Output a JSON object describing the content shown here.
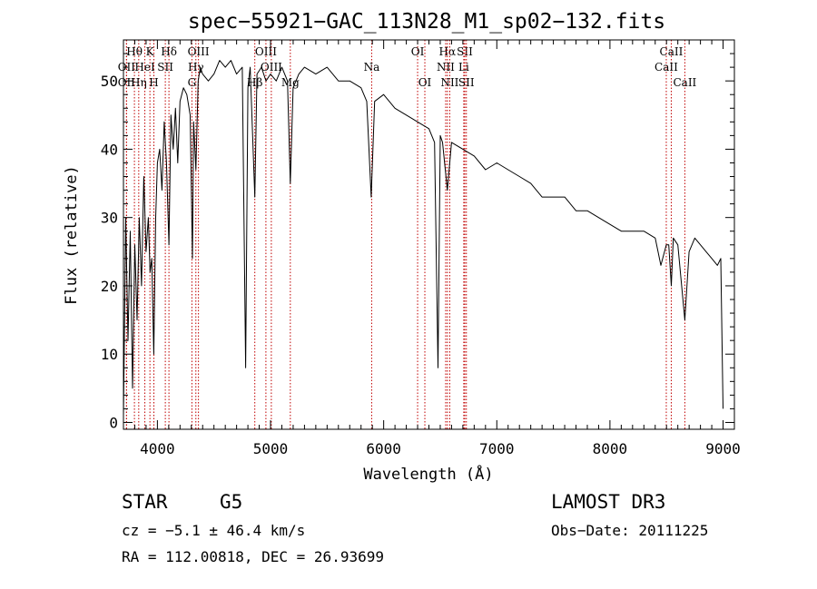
{
  "chart_data": {
    "type": "line",
    "title": "spec−55921−GAC_113N28_M1_sp02−132.fits",
    "xlabel": "Wavelength (Å)",
    "ylabel": "Flux (relative)",
    "xlim": [
      3700,
      9100
    ],
    "ylim": [
      -1,
      56
    ],
    "x_ticks": [
      4000,
      5000,
      6000,
      7000,
      8000,
      9000
    ],
    "y_ticks": [
      0,
      10,
      20,
      30,
      40,
      50
    ],
    "series": [
      {
        "name": "flux",
        "x": [
          3700,
          3720,
          3740,
          3760,
          3780,
          3800,
          3820,
          3840,
          3860,
          3880,
          3900,
          3920,
          3935,
          3950,
          3968,
          3985,
          4000,
          4020,
          4040,
          4060,
          4080,
          4102,
          4120,
          4140,
          4160,
          4180,
          4200,
          4230,
          4260,
          4290,
          4310,
          4320,
          4340,
          4360,
          4380,
          4400,
          4450,
          4500,
          4550,
          4600,
          4650,
          4700,
          4750,
          4780,
          4800,
          4820,
          4861,
          4880,
          4920,
          4960,
          5000,
          5050,
          5100,
          5150,
          5175,
          5200,
          5250,
          5300,
          5400,
          5500,
          5600,
          5700,
          5800,
          5850,
          5890,
          5920,
          6000,
          6100,
          6200,
          6300,
          6400,
          6450,
          6480,
          6500,
          6520,
          6563,
          6600,
          6700,
          6800,
          6900,
          7000,
          7100,
          7200,
          7300,
          7400,
          7500,
          7600,
          7700,
          7800,
          7900,
          8000,
          8100,
          8200,
          8300,
          8400,
          8450,
          8498,
          8520,
          8542,
          8560,
          8600,
          8662,
          8700,
          8750,
          8800,
          8850,
          8900,
          8950,
          8980,
          9000
        ],
        "values": [
          1,
          30,
          12,
          28,
          5,
          26,
          15,
          30,
          20,
          36,
          25,
          30,
          22,
          24,
          10,
          30,
          38,
          40,
          34,
          44,
          38,
          26,
          45,
          40,
          46,
          38,
          47,
          49,
          48,
          45,
          24,
          44,
          37,
          50,
          52,
          51,
          50,
          51,
          53,
          52,
          53,
          51,
          52,
          8,
          49,
          52,
          33,
          51,
          52,
          50,
          51,
          50,
          52,
          50,
          35,
          49,
          51,
          52,
          51,
          52,
          50,
          50,
          49,
          47,
          33,
          47,
          48,
          46,
          45,
          44,
          43,
          41,
          8,
          42,
          41,
          34,
          41,
          40,
          39,
          37,
          38,
          37,
          36,
          35,
          33,
          33,
          33,
          31,
          31,
          30,
          29,
          28,
          28,
          28,
          27,
          23,
          26,
          26,
          20,
          27,
          26,
          15,
          25,
          27,
          26,
          25,
          24,
          23,
          24,
          2
        ]
      }
    ],
    "line_markers": [
      {
        "label": "Hθ",
        "wl": 3797,
        "row": 0
      },
      {
        "label": "OII",
        "wl": 3727,
        "row": 1
      },
      {
        "label": "OII",
        "wl": 3727,
        "row": 2
      },
      {
        "label": "HeI",
        "wl": 3889,
        "row": 1
      },
      {
        "label": "Hη",
        "wl": 3835,
        "row": 2
      },
      {
        "label": "K",
        "wl": 3934,
        "row": 0
      },
      {
        "label": "H",
        "wl": 3969,
        "row": 2
      },
      {
        "label": "SII",
        "wl": 4070,
        "row": 1
      },
      {
        "label": "Hδ",
        "wl": 4102,
        "row": 0
      },
      {
        "label": "OIII",
        "wl": 4363,
        "row": 0
      },
      {
        "label": "Hγ",
        "wl": 4340,
        "row": 1
      },
      {
        "label": "G",
        "wl": 4305,
        "row": 2
      },
      {
        "label": "OIII",
        "wl": 4959,
        "row": 0
      },
      {
        "label": "OIII",
        "wl": 5007,
        "row": 1
      },
      {
        "label": "Hβ",
        "wl": 4861,
        "row": 2
      },
      {
        "label": "Mg",
        "wl": 5175,
        "row": 2
      },
      {
        "label": "Na",
        "wl": 5894,
        "row": 1
      },
      {
        "label": "OI",
        "wl": 6300,
        "row": 0
      },
      {
        "label": "OI",
        "wl": 6364,
        "row": 2
      },
      {
        "label": "Hα",
        "wl": 6563,
        "row": 0
      },
      {
        "label": "SII",
        "wl": 6717,
        "row": 0
      },
      {
        "label": "NII",
        "wl": 6548,
        "row": 1
      },
      {
        "label": "Li",
        "wl": 6708,
        "row": 1
      },
      {
        "label": "NII",
        "wl": 6584,
        "row": 2
      },
      {
        "label": "SII",
        "wl": 6731,
        "row": 2
      },
      {
        "label": "CaII",
        "wl": 8542,
        "row": 0
      },
      {
        "label": "CaII",
        "wl": 8498,
        "row": 1
      },
      {
        "label": "CaII",
        "wl": 8662,
        "row": 2
      }
    ]
  },
  "info": {
    "object_class": "STAR",
    "subclass": "G5",
    "survey": "LAMOST DR3",
    "redshift": "cz = −5.1 ± 46.4 km/s",
    "obs_date": "Obs−Date: 20111225",
    "coordinates": "RA = 112.00818, DEC =  26.93699"
  },
  "colors": {
    "spectrum": "#000000",
    "line_marker": "#c00000",
    "axis": "#000000",
    "background": "#ffffff"
  }
}
